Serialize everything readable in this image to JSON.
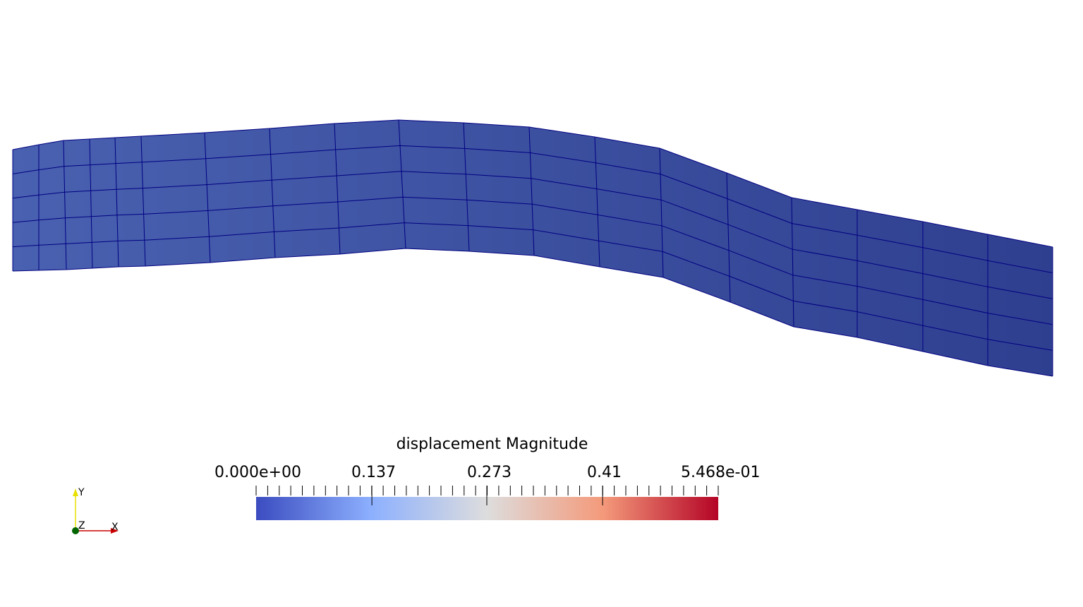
{
  "colorbar": {
    "title": "displacement Magnitude",
    "min_label": "0.000e+00",
    "max_label": "5.468e-01",
    "tick_labels": [
      "0.137",
      "0.273",
      "0.41"
    ],
    "range": [
      0,
      0.5468
    ],
    "colors": [
      "#3b4cc0",
      "#dddddd",
      "#b40426"
    ]
  },
  "axes": {
    "x": "X",
    "y": "Y",
    "z": "Z"
  },
  "mesh": {
    "fill_start": "#4961b0",
    "fill_end": "#2f3f90",
    "edge_color": "#000080"
  }
}
